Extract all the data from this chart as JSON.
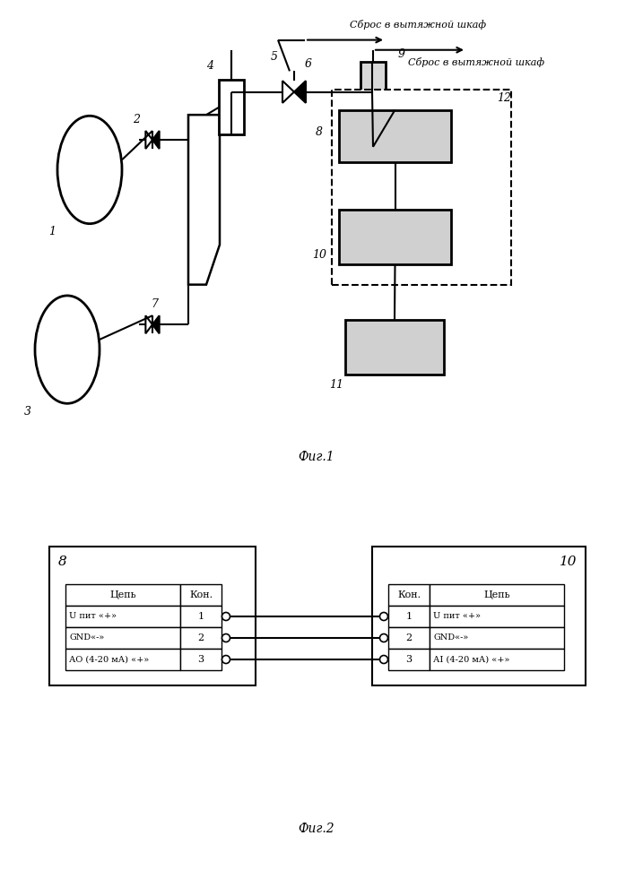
{
  "fig1_title": "Фиг.1",
  "fig2_title": "Фиг.2",
  "sbros1": "Сброс в вытяжной шкаф",
  "sbros2": "Сброс в вытяжной шкаф",
  "bg_color": "#ffffff",
  "lc": "#000000",
  "label1": "1",
  "label2": "2",
  "label3": "3",
  "label4": "4",
  "label5": "5",
  "label6": "6",
  "label7": "7",
  "label8": "8",
  "label9": "9",
  "label10": "10",
  "label11": "11",
  "label12": "12",
  "table8_header": [
    "Цепь",
    "Кон."
  ],
  "table10_header": [
    "Кон.",
    "Цепь"
  ],
  "table8_rows": [
    [
      "U пит «+»",
      "1"
    ],
    [
      "GND«-»",
      "2"
    ],
    [
      "АО (4-20 мА) «+»",
      "3"
    ]
  ],
  "table10_rows": [
    [
      "1",
      "U пит «+»"
    ],
    [
      "2",
      "GND«-»"
    ],
    [
      "3",
      "АI (4-20 мА) «+»"
    ]
  ]
}
